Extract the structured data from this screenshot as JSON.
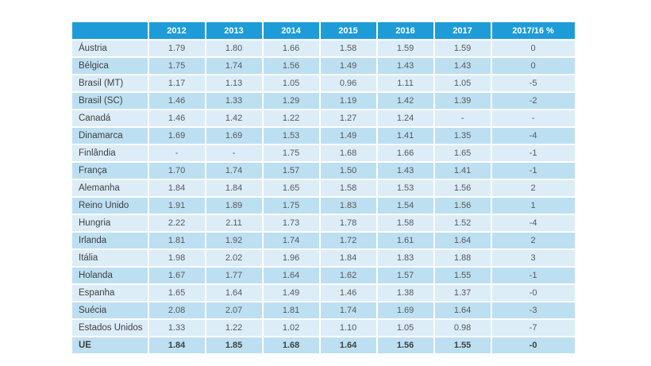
{
  "colors": {
    "background": "#FFFFFF",
    "header_bg": "#1E9CD8",
    "header_text": "#FFFFFF",
    "row_light": "#DCEDF8",
    "row_dark": "#BDDFF2",
    "country_text": "#3F3F3F",
    "value_text": "#595959",
    "bold_text": "#404040"
  },
  "chart_data": {
    "type": "table",
    "columns": [
      "",
      "2012",
      "2013",
      "2014",
      "2015",
      "2016",
      "2017",
      "2017/16 %"
    ],
    "rows": [
      {
        "name": "Áustria",
        "values": [
          "1.79",
          "1.80",
          "1.66",
          "1.58",
          "1.59",
          "1.59",
          "0"
        ],
        "bold": false
      },
      {
        "name": "Bélgica",
        "values": [
          "1.75",
          "1.74",
          "1.56",
          "1.49",
          "1.43",
          "1.43",
          "0"
        ],
        "bold": false
      },
      {
        "name": "Brasil (MT)",
        "values": [
          "1.17",
          "1.13",
          "1.05",
          "0.96",
          "1.11",
          "1.05",
          "-5"
        ],
        "bold": false
      },
      {
        "name": "Brasil (SC)",
        "values": [
          "1.46",
          "1.33",
          "1.29",
          "1.19",
          "1.42",
          "1.39",
          "-2"
        ],
        "bold": false
      },
      {
        "name": "Canadá",
        "values": [
          "1.46",
          "1.42",
          "1.22",
          "1.27",
          "1.24",
          "-",
          "-"
        ],
        "bold": false
      },
      {
        "name": "Dinamarca",
        "values": [
          "1.69",
          "1.69",
          "1.53",
          "1.49",
          "1.41",
          "1.35",
          "-4"
        ],
        "bold": false
      },
      {
        "name": "Finlândia",
        "values": [
          "-",
          "-",
          "1.75",
          "1.68",
          "1.66",
          "1.65",
          "-1"
        ],
        "bold": false
      },
      {
        "name": "França",
        "values": [
          "1.70",
          "1.74",
          "1.57",
          "1.50",
          "1.43",
          "1.41",
          "-1"
        ],
        "bold": false
      },
      {
        "name": "Alemanha",
        "values": [
          "1.84",
          "1.84",
          "1.65",
          "1.58",
          "1.53",
          "1.56",
          "2"
        ],
        "bold": false
      },
      {
        "name": "Reino Unido",
        "values": [
          "1.91",
          "1.89",
          "1.75",
          "1.83",
          "1.54",
          "1.56",
          "1"
        ],
        "bold": false
      },
      {
        "name": "Hungria",
        "values": [
          "2.22",
          "2.11",
          "1.73",
          "1.78",
          "1.58",
          "1.52",
          "-4"
        ],
        "bold": false
      },
      {
        "name": "Irlanda",
        "values": [
          "1.81",
          "1.92",
          "1.74",
          "1.72",
          "1.61",
          "1.64",
          "2"
        ],
        "bold": false
      },
      {
        "name": "Itália",
        "values": [
          "1.98",
          "2.02",
          "1.96",
          "1.84",
          "1.83",
          "1.88",
          "3"
        ],
        "bold": false
      },
      {
        "name": "Holanda",
        "values": [
          "1.67",
          "1.77",
          "1.64",
          "1.62",
          "1.57",
          "1.55",
          "-1"
        ],
        "bold": false
      },
      {
        "name": "Espanha",
        "values": [
          "1.65",
          "1.64",
          "1.49",
          "1.46",
          "1.38",
          "1.37",
          "-0"
        ],
        "bold": false
      },
      {
        "name": "Suécia",
        "values": [
          "2.08",
          "2.07",
          "1.81",
          "1.74",
          "1.69",
          "1.64",
          "-3"
        ],
        "bold": false
      },
      {
        "name": "Estados Unidos",
        "values": [
          "1.33",
          "1.22",
          "1.02",
          "1.10",
          "1.05",
          "0.98",
          "-7"
        ],
        "bold": false
      },
      {
        "name": "UE",
        "values": [
          "1.84",
          "1.85",
          "1.68",
          "1.64",
          "1.56",
          "1.55",
          "-0"
        ],
        "bold": true
      }
    ]
  }
}
